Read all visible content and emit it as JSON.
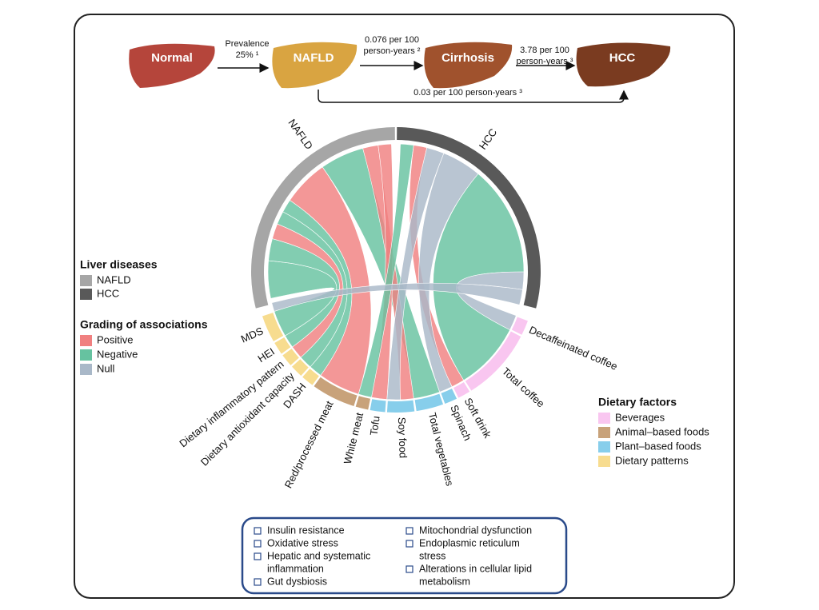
{
  "progression": {
    "stages": [
      "Normal",
      "NAFLD",
      "Cirrhosis",
      "HCC"
    ],
    "arrows": [
      [
        "Prevalence",
        "25% ¹"
      ],
      [
        "0.076 per 100",
        "person-years ²"
      ],
      [
        "3.78 per 100",
        "person-years ³"
      ]
    ],
    "bypass": "0.03 per 100 person-years ³"
  },
  "chord": {
    "diseases": [
      "NAFLD",
      "HCC"
    ],
    "factors": [
      "Decaffeinated coffee",
      "Total coffee",
      "Soft drink",
      "Spinach",
      "Total vegetables",
      "Soy food",
      "Tofu",
      "White meat",
      "Red/processed meat",
      "DASH",
      "Dietary antioxidant capacity",
      "Dietary inflammatory pattern",
      "HEI",
      "MDS"
    ]
  },
  "legend_diseases": {
    "title": "Liver diseases",
    "items": [
      "NAFLD",
      "HCC"
    ]
  },
  "legend_grading": {
    "title": "Grading of associations",
    "items": [
      "Positive",
      "Negative",
      "Null"
    ]
  },
  "legend_factors": {
    "title": "Dietary factors",
    "items": [
      "Beverages",
      "Animal–based foods",
      "Plant–based foods",
      "Dietary patterns"
    ]
  },
  "mechanisms": {
    "left": [
      [
        "Insulin resistance"
      ],
      [
        "Oxidative stress"
      ],
      [
        "Hepatic and systematic",
        "inflammation"
      ],
      [
        "Gut dysbiosis"
      ]
    ],
    "right": [
      [
        "Mitochondrial dysfunction"
      ],
      [
        "Endoplasmic reticulum",
        "stress"
      ],
      [
        "Alterations in cellular lipid",
        "metabolism"
      ]
    ]
  }
}
